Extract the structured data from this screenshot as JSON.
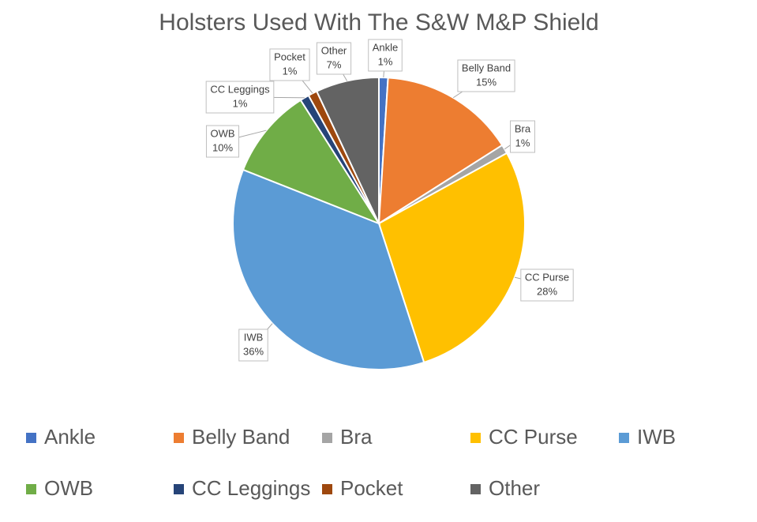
{
  "chart_data": {
    "type": "pie",
    "title": "Holsters Used With The S&W M&P Shield",
    "categories": [
      "Ankle",
      "Belly Band",
      "Bra",
      "CC Purse",
      "IWB",
      "OWB",
      "CC Leggings",
      "Pocket",
      "Other"
    ],
    "values": [
      1,
      15,
      1,
      28,
      36,
      10,
      1,
      1,
      7
    ],
    "value_labels": [
      "1%",
      "15%",
      "1%",
      "28%",
      "36%",
      "10%",
      "1%",
      "1%",
      "7%"
    ],
    "colors": [
      "#4472c4",
      "#ed7d31",
      "#a5a5a5",
      "#ffc000",
      "#5b9bd5",
      "#70ad47",
      "#264478",
      "#9e480e",
      "#636363"
    ],
    "legend": "bottom"
  }
}
